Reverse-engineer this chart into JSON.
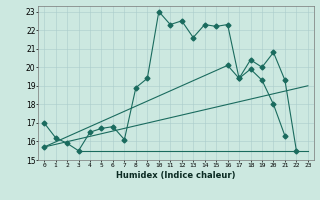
{
  "xlabel": "Humidex (Indice chaleur)",
  "bg_color": "#cce8e0",
  "grid_color": "#aacccc",
  "line_color": "#1a6b5e",
  "xlim": [
    -0.5,
    23.5
  ],
  "ylim": [
    15,
    23.3
  ],
  "yticks": [
    15,
    16,
    17,
    18,
    19,
    20,
    21,
    22,
    23
  ],
  "xticks": [
    0,
    1,
    2,
    3,
    4,
    5,
    6,
    7,
    8,
    9,
    10,
    11,
    12,
    13,
    14,
    15,
    16,
    17,
    18,
    19,
    20,
    21,
    22,
    23
  ],
  "line1_x": [
    0,
    1,
    2,
    3,
    4,
    5,
    6,
    7,
    8,
    9,
    10,
    11,
    12,
    13,
    14,
    15,
    16,
    17,
    18,
    19,
    20,
    21
  ],
  "line1_y": [
    17.0,
    16.2,
    15.9,
    15.5,
    16.5,
    16.7,
    16.8,
    16.1,
    18.9,
    19.4,
    23.0,
    22.3,
    22.5,
    21.6,
    22.3,
    22.2,
    22.3,
    19.4,
    19.9,
    19.3,
    18.0,
    16.3
  ],
  "line2_x": [
    3,
    23
  ],
  "line2_y": [
    15.5,
    15.5
  ],
  "line3_x": [
    0,
    23
  ],
  "line3_y": [
    15.7,
    19.0
  ],
  "line4_x": [
    0,
    16,
    17,
    18,
    19,
    20,
    21,
    22
  ],
  "line4_y": [
    15.7,
    20.1,
    19.4,
    20.4,
    20.0,
    20.8,
    19.3,
    15.5
  ],
  "line4_markers_x": [
    16,
    17,
    18,
    19,
    20,
    21,
    22
  ],
  "line4_markers_y": [
    20.1,
    19.4,
    20.4,
    20.0,
    20.8,
    19.3,
    15.5
  ]
}
